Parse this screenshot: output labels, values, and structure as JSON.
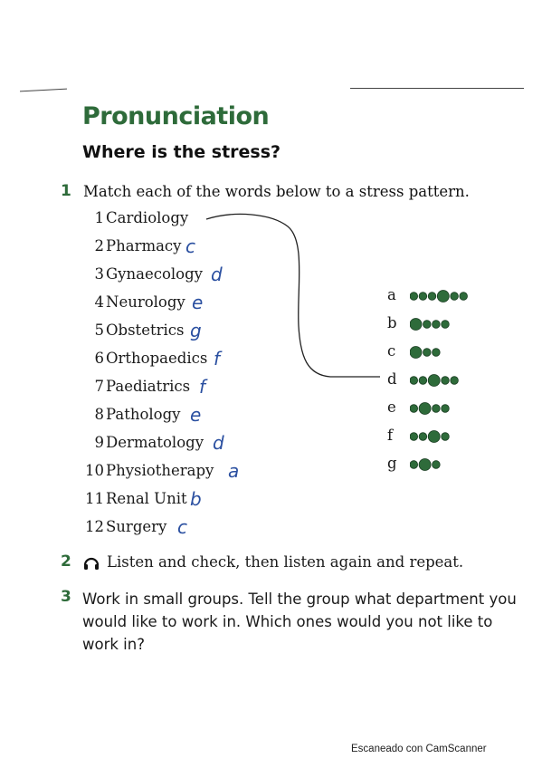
{
  "header": {
    "title": "Pronunciation",
    "subtitle": "Where is the stress?"
  },
  "exercise1": {
    "number": "1",
    "instruction": "Match each of the words below to a stress pattern.",
    "words": [
      {
        "num": "1",
        "word": "Cardiology",
        "answer": ""
      },
      {
        "num": "2",
        "word": "Pharmacy",
        "answer": "c"
      },
      {
        "num": "3",
        "word": "Gynaecology",
        "answer": "d"
      },
      {
        "num": "4",
        "word": "Neurology",
        "answer": "e"
      },
      {
        "num": "5",
        "word": "Obstetrics",
        "answer": "g"
      },
      {
        "num": "6",
        "word": "Orthopaedics",
        "answer": "f"
      },
      {
        "num": "7",
        "word": "Paediatrics",
        "answer": "f"
      },
      {
        "num": "8",
        "word": "Pathology",
        "answer": "e"
      },
      {
        "num": "9",
        "word": "Dermatology",
        "answer": "d"
      },
      {
        "num": "10",
        "word": "Physiotherapy",
        "answer": "a"
      },
      {
        "num": "11",
        "word": "Renal Unit",
        "answer": "b"
      },
      {
        "num": "12",
        "word": "Surgery",
        "answer": "c"
      }
    ],
    "patterns": [
      {
        "letter": "a",
        "dots": "oooOoo"
      },
      {
        "letter": "b",
        "dots": "Oooo"
      },
      {
        "letter": "c",
        "dots": "Ooo"
      },
      {
        "letter": "d",
        "dots": "ooOoo"
      },
      {
        "letter": "e",
        "dots": "oOoo"
      },
      {
        "letter": "f",
        "dots": "ooOo"
      },
      {
        "letter": "g",
        "dots": "oOo"
      }
    ]
  },
  "exercise2": {
    "number": "2",
    "icon": "headphones-icon",
    "text": "Listen and check, then listen again and repeat."
  },
  "exercise3": {
    "number": "3",
    "text": "Work in small groups. Tell the group what department you would like to work in. Which ones would you not like to work in?"
  },
  "footer": {
    "watermark": "Escaneado con CamScanner"
  },
  "colors": {
    "heading_green": "#2e6b3a",
    "dot_green": "#2e6b3a",
    "ink_blue": "#2a4fa0"
  }
}
